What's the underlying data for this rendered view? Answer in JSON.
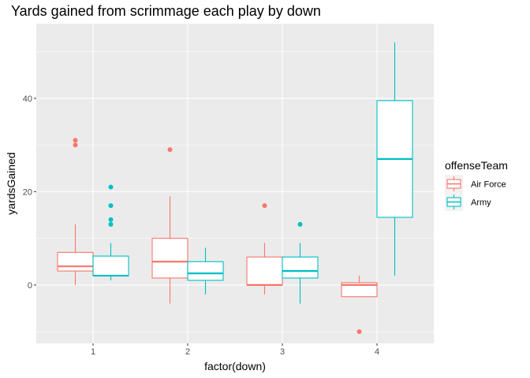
{
  "chart_data": {
    "type": "boxplot",
    "title": "Yards gained from scrimmage each play by down",
    "xlabel": "factor(down)",
    "ylabel": "yardsGained",
    "categories": [
      "1",
      "2",
      "3",
      "4"
    ],
    "ylim": [
      -12.5,
      56
    ],
    "yticks": [
      0,
      20,
      40
    ],
    "grid": true,
    "legend": {
      "title": "offenseTeam",
      "placement": "right"
    },
    "series": [
      {
        "name": "Air Force",
        "color": "#F8766D",
        "boxes": [
          {
            "category": "1",
            "whisker_low": 0,
            "q1": 3,
            "median": 4,
            "q3": 7,
            "whisker_high": 13,
            "outliers": [
              30,
              31
            ]
          },
          {
            "category": "2",
            "whisker_low": -4,
            "q1": 1.5,
            "median": 5,
            "q3": 10,
            "whisker_high": 19,
            "outliers": [
              29
            ]
          },
          {
            "category": "3",
            "whisker_low": -2,
            "q1": 0,
            "median": 0,
            "q3": 6,
            "whisker_high": 9,
            "outliers": [
              17
            ]
          },
          {
            "category": "4",
            "whisker_low": -2.5,
            "q1": -2.5,
            "median": 0,
            "q3": 0.5,
            "whisker_high": 2,
            "outliers": [
              -10
            ]
          }
        ]
      },
      {
        "name": "Army",
        "color": "#00BFC4",
        "boxes": [
          {
            "category": "1",
            "whisker_low": 1,
            "q1": 2,
            "median": 2,
            "q3": 6.2,
            "whisker_high": 9,
            "outliers": [
              13,
              14,
              17,
              21
            ]
          },
          {
            "category": "2",
            "whisker_low": -2,
            "q1": 1,
            "median": 2.5,
            "q3": 5,
            "whisker_high": 8,
            "outliers": []
          },
          {
            "category": "3",
            "whisker_low": -4,
            "q1": 1.5,
            "median": 3,
            "q3": 6,
            "whisker_high": 9,
            "outliers": [
              13
            ]
          },
          {
            "category": "4",
            "whisker_low": 2,
            "q1": 14.5,
            "median": 27,
            "q3": 39.5,
            "whisker_high": 52,
            "outliers": []
          }
        ]
      }
    ]
  }
}
